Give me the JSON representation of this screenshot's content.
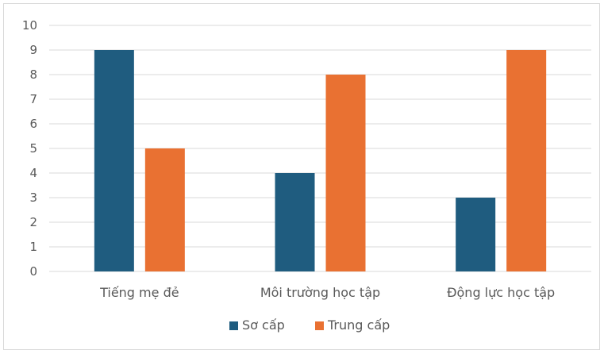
{
  "chart_data": {
    "type": "bar",
    "categories": [
      "Tiếng mẹ đẻ",
      "Môi trường học tập",
      "Động lực học tập"
    ],
    "series": [
      {
        "name": "Sơ cấp",
        "values": [
          9,
          4,
          3
        ],
        "color": "#1f5c7f"
      },
      {
        "name": "Trung cấp",
        "values": [
          5,
          8,
          9
        ],
        "color": "#e97132"
      }
    ],
    "ylim": [
      0,
      10
    ],
    "yticks": [
      0,
      1,
      2,
      3,
      4,
      5,
      6,
      7,
      8,
      9,
      10
    ],
    "grid": true,
    "legend": "bottom"
  }
}
